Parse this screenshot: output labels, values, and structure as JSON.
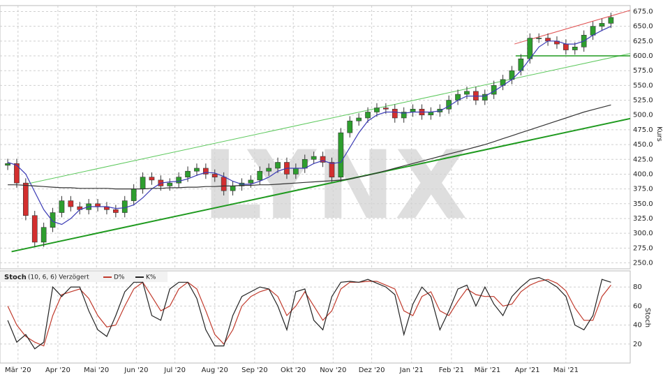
{
  "chart_data": [
    {
      "type": "candlestick",
      "y_label": "Kurs",
      "watermark": "LYNX",
      "xlim": [
        -4,
        486
      ],
      "ylim": [
        240,
        685
      ],
      "xticks": [
        {
          "value": 10,
          "label": "Mär '20"
        },
        {
          "value": 41,
          "label": "Apr '20"
        },
        {
          "value": 71,
          "label": "Mai '20"
        },
        {
          "value": 102,
          "label": "Jun '20"
        },
        {
          "value": 132,
          "label": "Jul '20"
        },
        {
          "value": 163,
          "label": "Aug '20"
        },
        {
          "value": 194,
          "label": "Sep '20"
        },
        {
          "value": 224,
          "label": "Okt '20"
        },
        {
          "value": 255,
          "label": "Nov '20"
        },
        {
          "value": 285,
          "label": "Dez '20"
        },
        {
          "value": 316,
          "label": "Jan '21"
        },
        {
          "value": 347,
          "label": "Feb '21"
        },
        {
          "value": 375,
          "label": "Mär '21"
        },
        {
          "value": 406,
          "label": "Apr '21"
        },
        {
          "value": 436,
          "label": "Mai '21"
        }
      ],
      "yticks": [
        {
          "value": 250,
          "label": "250.0"
        },
        {
          "value": 275,
          "label": "275.0"
        },
        {
          "value": 300,
          "label": "300.0"
        },
        {
          "value": 325,
          "label": "325.0"
        },
        {
          "value": 350,
          "label": "350.0"
        },
        {
          "value": 375,
          "label": "375.0"
        },
        {
          "value": 400,
          "label": "400.0"
        },
        {
          "value": 425,
          "label": "425.0"
        },
        {
          "value": 450,
          "label": "450.0"
        },
        {
          "value": 475,
          "label": "475.0"
        },
        {
          "value": 500,
          "label": "500.0"
        },
        {
          "value": 525,
          "label": "525.0"
        },
        {
          "value": 550,
          "label": "550.0"
        },
        {
          "value": 575,
          "label": "575.0"
        },
        {
          "value": 600,
          "label": "600.0"
        },
        {
          "value": 625,
          "label": "625.0"
        },
        {
          "value": 650,
          "label": "650.0"
        },
        {
          "value": 675,
          "label": "675.0"
        }
      ],
      "grid": true,
      "up_color": "#2e9e2e",
      "down_color": "#d32f2f",
      "x": [
        2,
        9,
        16,
        23,
        30,
        37,
        44,
        51,
        58,
        65,
        72,
        79,
        86,
        93,
        100,
        107,
        114,
        121,
        128,
        135,
        142,
        149,
        156,
        163,
        170,
        177,
        184,
        191,
        198,
        205,
        212,
        219,
        226,
        233,
        240,
        247,
        254,
        261,
        268,
        275,
        282,
        289,
        296,
        303,
        310,
        317,
        324,
        331,
        338,
        345,
        352,
        359,
        366,
        373,
        380,
        387,
        394,
        401,
        408,
        415,
        422,
        429,
        436,
        443,
        450,
        457,
        464,
        471
      ],
      "open": [
        415,
        418,
        385,
        330,
        285,
        310,
        335,
        355,
        345,
        340,
        350,
        345,
        340,
        335,
        355,
        375,
        395,
        390,
        380,
        385,
        395,
        405,
        410,
        400,
        395,
        372,
        380,
        385,
        390,
        405,
        410,
        420,
        400,
        410,
        425,
        430,
        420,
        395,
        470,
        490,
        495,
        505,
        512,
        510,
        495,
        505,
        510,
        500,
        505,
        510,
        525,
        535,
        540,
        525,
        535,
        550,
        560,
        575,
        595,
        630,
        630,
        625,
        620,
        610,
        615,
        635,
        650,
        655
      ],
      "high": [
        426,
        426,
        393,
        338,
        318,
        343,
        363,
        363,
        353,
        358,
        358,
        353,
        348,
        363,
        383,
        403,
        403,
        398,
        393,
        403,
        413,
        418,
        418,
        408,
        403,
        388,
        393,
        398,
        413,
        418,
        428,
        428,
        418,
        433,
        438,
        438,
        428,
        478,
        498,
        503,
        513,
        520,
        520,
        518,
        513,
        518,
        518,
        513,
        518,
        533,
        543,
        548,
        548,
        543,
        558,
        568,
        583,
        603,
        638,
        638,
        638,
        633,
        628,
        623,
        643,
        658,
        663,
        673
      ],
      "low": [
        407,
        377,
        322,
        277,
        277,
        302,
        327,
        337,
        332,
        332,
        337,
        332,
        327,
        327,
        347,
        367,
        382,
        372,
        372,
        377,
        387,
        397,
        392,
        387,
        364,
        364,
        372,
        377,
        382,
        397,
        402,
        392,
        392,
        402,
        417,
        412,
        387,
        387,
        462,
        482,
        487,
        497,
        502,
        487,
        487,
        497,
        492,
        492,
        497,
        502,
        517,
        527,
        517,
        517,
        527,
        542,
        552,
        567,
        587,
        622,
        617,
        612,
        602,
        602,
        607,
        627,
        642,
        647
      ],
      "close": [
        418,
        385,
        330,
        285,
        310,
        335,
        355,
        345,
        340,
        350,
        345,
        340,
        335,
        355,
        375,
        395,
        390,
        380,
        385,
        395,
        405,
        410,
        400,
        395,
        372,
        380,
        385,
        390,
        405,
        410,
        420,
        400,
        410,
        425,
        430,
        420,
        395,
        470,
        490,
        495,
        505,
        512,
        510,
        495,
        505,
        510,
        500,
        505,
        510,
        525,
        535,
        540,
        525,
        535,
        550,
        560,
        575,
        595,
        630,
        630,
        625,
        620,
        610,
        615,
        635,
        650,
        655,
        665
      ],
      "series": [
        {
          "color": "#3b3bb5",
          "values": [
            420,
            415,
            400,
            370,
            340,
            320,
            315,
            325,
            340,
            345,
            345,
            345,
            342,
            343,
            348,
            360,
            375,
            385,
            387,
            388,
            392,
            398,
            403,
            402,
            396,
            388,
            383,
            383,
            388,
            395,
            405,
            410,
            410,
            410,
            418,
            423,
            418,
            420,
            445,
            470,
            490,
            500,
            505,
            505,
            503,
            505,
            505,
            505,
            507,
            515,
            525,
            532,
            532,
            532,
            540,
            550,
            560,
            575,
            595,
            615,
            625,
            625,
            620,
            620,
            625,
            635,
            643,
            650
          ]
        },
        {
          "color": "#333333",
          "values": [
            382,
            382,
            381,
            380,
            379,
            378,
            377,
            377,
            376,
            376,
            376,
            376,
            375,
            375,
            375,
            375,
            376,
            376,
            377,
            377,
            378,
            378,
            379,
            379,
            380,
            380,
            381,
            381,
            382,
            382,
            383,
            384,
            385,
            386,
            387,
            388,
            389,
            390,
            392,
            395,
            398,
            402,
            406,
            410,
            414,
            418,
            422,
            426,
            430,
            434,
            438,
            442,
            446,
            450,
            455,
            460,
            465,
            470,
            475,
            480,
            485,
            490,
            495,
            500,
            505,
            509,
            513,
            517
          ]
        }
      ],
      "trendlines": [
        {
          "color": "#1f9a1f",
          "width": 2,
          "x": [
            5,
            486
          ],
          "y": [
            269,
            494
          ]
        },
        {
          "color": "#5cc85c",
          "width": 1,
          "x": [
            18,
            486
          ],
          "y": [
            384,
            604
          ]
        },
        {
          "color": "#1f9a1f",
          "width": 1.5,
          "x": [
            397,
            486
          ],
          "y": [
            600,
            600
          ]
        },
        {
          "color": "#e05050",
          "width": 1,
          "x": [
            396,
            486
          ],
          "y": [
            620,
            677
          ]
        }
      ]
    },
    {
      "type": "line",
      "title": "Stoch",
      "subtitle": "(10, 6, 6) Verzögert",
      "y_label": "Stoch",
      "ylim": [
        0,
        97
      ],
      "yticks": [
        20,
        40,
        60,
        80
      ],
      "grid": true,
      "series": [
        {
          "name": "D%",
          "color": "#c0392b",
          "values": [
            60,
            40,
            28,
            22,
            18,
            50,
            72,
            75,
            78,
            68,
            50,
            38,
            40,
            60,
            78,
            85,
            70,
            55,
            60,
            78,
            85,
            78,
            55,
            30,
            20,
            35,
            60,
            70,
            75,
            78,
            70,
            50,
            60,
            75,
            60,
            45,
            55,
            78,
            85,
            85,
            86,
            86,
            82,
            78,
            55,
            50,
            70,
            75,
            55,
            50,
            65,
            78,
            72,
            70,
            70,
            60,
            62,
            75,
            82,
            86,
            88,
            84,
            76,
            58,
            45,
            45,
            70,
            82
          ]
        },
        {
          "name": "K%",
          "color": "#222222",
          "values": [
            45,
            22,
            30,
            15,
            22,
            80,
            70,
            80,
            80,
            55,
            35,
            28,
            50,
            75,
            85,
            85,
            50,
            45,
            78,
            85,
            85,
            68,
            35,
            18,
            18,
            50,
            70,
            75,
            80,
            78,
            60,
            35,
            75,
            78,
            45,
            35,
            70,
            85,
            86,
            85,
            88,
            84,
            80,
            72,
            30,
            62,
            80,
            70,
            35,
            55,
            78,
            82,
            60,
            80,
            62,
            50,
            70,
            80,
            88,
            90,
            86,
            80,
            70,
            40,
            35,
            50,
            88,
            85
          ]
        }
      ]
    }
  ]
}
